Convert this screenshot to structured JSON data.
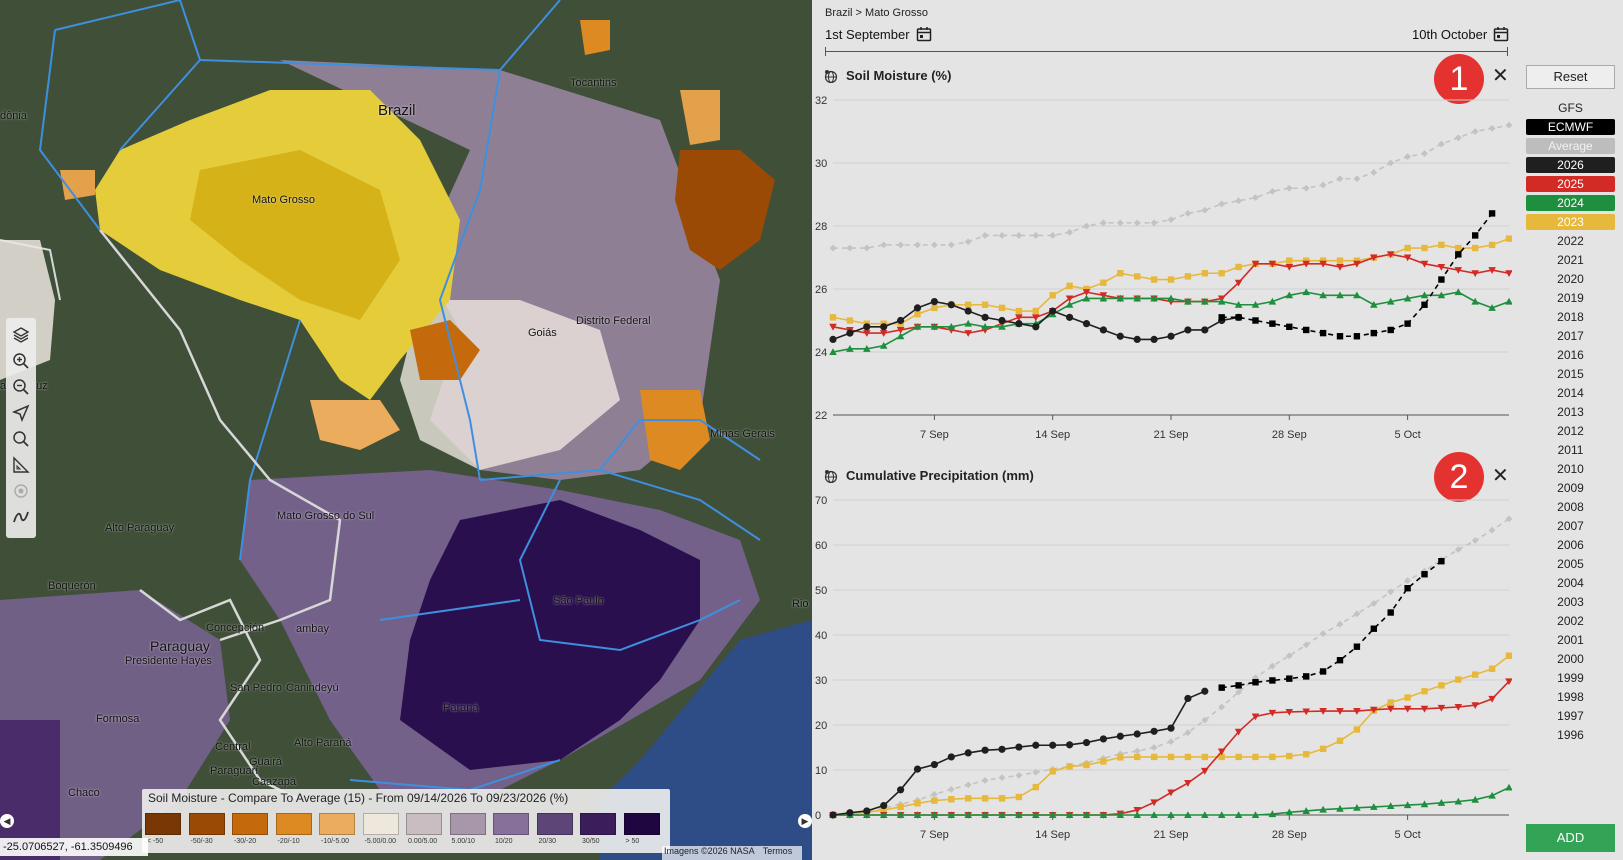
{
  "map": {
    "labels": [
      {
        "text": "Brazil",
        "size": "big"
      },
      {
        "text": "Mato Grosso",
        "size": "small"
      },
      {
        "text": "Tocantins",
        "size": "small"
      },
      {
        "text": "dônia",
        "size": "small"
      },
      {
        "text": "Goiás",
        "size": "small"
      },
      {
        "text": "Distrito Federal",
        "size": "small"
      },
      {
        "text": "anta Cruz",
        "size": "small"
      },
      {
        "text": "Minas Gerais",
        "size": "small"
      },
      {
        "text": "Mato Grosso do Sul",
        "size": "small"
      },
      {
        "text": "Alto Paraguay",
        "size": "small"
      },
      {
        "text": "Boquerón",
        "size": "small"
      },
      {
        "text": "São Paulo",
        "size": "small"
      },
      {
        "text": "Rio",
        "size": "small"
      },
      {
        "text": "Paraguay",
        "size": "mid"
      },
      {
        "text": "Concepción",
        "size": "small"
      },
      {
        "text": "Presidente Hayes",
        "size": "small"
      },
      {
        "text": "San Pedro",
        "size": "small"
      },
      {
        "text": "Canindeyú",
        "size": "small"
      },
      {
        "text": "Formosa",
        "size": "small"
      },
      {
        "text": "Paraná",
        "size": "small"
      },
      {
        "text": "Central",
        "size": "small"
      },
      {
        "text": "Alto Paraná",
        "size": "small"
      },
      {
        "text": "Guairá",
        "size": "small"
      },
      {
        "text": "Paraguarí",
        "size": "small"
      },
      {
        "text": "Caazapá",
        "size": "small"
      },
      {
        "text": "Chaco",
        "size": "small"
      },
      {
        "text": "ambay",
        "size": "small"
      }
    ],
    "toolbar": [
      "layers-icon",
      "zoom-in-icon",
      "zoom-out-icon",
      "navigate-icon",
      "search-icon",
      "measure-icon",
      "locate-icon",
      "draw-icon"
    ],
    "legend": {
      "title": "Soil Moisture - Compare To Average (15) - From 09/14/2026 To 09/23/2026 (%)",
      "swatches": [
        {
          "label": "< -50",
          "color": "#7a3706"
        },
        {
          "label": "-50/-30",
          "color": "#9b4a06"
        },
        {
          "label": "-30/-20",
          "color": "#c56a0c"
        },
        {
          "label": "-20/-10",
          "color": "#de8a22"
        },
        {
          "label": "-10/-5.00",
          "color": "#ecac5d"
        },
        {
          "label": "-5.00/0.00",
          "color": "#eee7dc"
        },
        {
          "label": "0.00/5.00",
          "color": "#c9bdc2"
        },
        {
          "label": "5.00/10",
          "color": "#a896aa"
        },
        {
          "label": "10/20",
          "color": "#87709a"
        },
        {
          "label": "20/30",
          "color": "#5d4578"
        },
        {
          "label": "30/50",
          "color": "#3c1d5c"
        },
        {
          "label": "> 50",
          "color": "#1f0640"
        }
      ]
    },
    "coords": "-25.0706527, -61.3509496",
    "attribution": [
      "Imagens ©2026 NASA",
      "Termos"
    ],
    "edge_left": "◀",
    "edge_right": "▶"
  },
  "panel": {
    "breadcrumb": "Brazil > Mato Grosso",
    "start_date": "1st September",
    "end_date": "10th October",
    "charts": [
      {
        "title": "Soil Moisture (%)",
        "badge": "1",
        "close": "✕"
      },
      {
        "title": "Cumulative Precipitation (mm)",
        "badge": "2",
        "close": "✕"
      }
    ]
  },
  "sidebar": {
    "reset": "Reset",
    "add": "ADD",
    "items": [
      {
        "label": "GFS",
        "bg": "",
        "fg": "#222"
      },
      {
        "label": "ECMWF",
        "bg": "#000000",
        "fg": "#ffffff"
      },
      {
        "label": "Average",
        "bg": "#bdbdbd",
        "fg": "#f2f2f2"
      },
      {
        "label": "2026",
        "bg": "#1f1f1f",
        "fg": "#ffffff"
      },
      {
        "label": "2025",
        "bg": "#d22b26",
        "fg": "#ffffff"
      },
      {
        "label": "2024",
        "bg": "#1e8f3e",
        "fg": "#ffffff"
      },
      {
        "label": "2023",
        "bg": "#e6b83c",
        "fg": "#ffffff"
      },
      {
        "label": "2022",
        "bg": "",
        "fg": "#222"
      },
      {
        "label": "2021",
        "bg": "",
        "fg": "#222"
      },
      {
        "label": "2020",
        "bg": "",
        "fg": "#222"
      },
      {
        "label": "2019",
        "bg": "",
        "fg": "#222"
      },
      {
        "label": "2018",
        "bg": "",
        "fg": "#222"
      },
      {
        "label": "2017",
        "bg": "",
        "fg": "#222"
      },
      {
        "label": "2016",
        "bg": "",
        "fg": "#222"
      },
      {
        "label": "2015",
        "bg": "",
        "fg": "#222"
      },
      {
        "label": "2014",
        "bg": "",
        "fg": "#222"
      },
      {
        "label": "2013",
        "bg": "",
        "fg": "#222"
      },
      {
        "label": "2012",
        "bg": "",
        "fg": "#222"
      },
      {
        "label": "2011",
        "bg": "",
        "fg": "#222"
      },
      {
        "label": "2010",
        "bg": "",
        "fg": "#222"
      },
      {
        "label": "2009",
        "bg": "",
        "fg": "#222"
      },
      {
        "label": "2008",
        "bg": "",
        "fg": "#222"
      },
      {
        "label": "2007",
        "bg": "",
        "fg": "#222"
      },
      {
        "label": "2006",
        "bg": "",
        "fg": "#222"
      },
      {
        "label": "2005",
        "bg": "",
        "fg": "#222"
      },
      {
        "label": "2004",
        "bg": "",
        "fg": "#222"
      },
      {
        "label": "2003",
        "bg": "",
        "fg": "#222"
      },
      {
        "label": "2002",
        "bg": "",
        "fg": "#222"
      },
      {
        "label": "2001",
        "bg": "",
        "fg": "#222"
      },
      {
        "label": "2000",
        "bg": "",
        "fg": "#222"
      },
      {
        "label": "1999",
        "bg": "",
        "fg": "#222"
      },
      {
        "label": "1998",
        "bg": "",
        "fg": "#222"
      },
      {
        "label": "1997",
        "bg": "",
        "fg": "#222"
      },
      {
        "label": "1996",
        "bg": "",
        "fg": "#222"
      }
    ]
  },
  "chart_data": [
    {
      "type": "line",
      "title": "Soil Moisture (%)",
      "x_start": 1,
      "xticks": [
        {
          "day": 7,
          "label": "7 Sep"
        },
        {
          "day": 14,
          "label": "14 Sep"
        },
        {
          "day": 21,
          "label": "21 Sep"
        },
        {
          "day": 28,
          "label": "28 Sep"
        },
        {
          "day": 35,
          "label": "5 Oct"
        }
      ],
      "ylim": [
        22,
        32
      ],
      "yticks": [
        22,
        24,
        26,
        28,
        30,
        32
      ],
      "grid": true,
      "series": [
        {
          "name": "Average",
          "color": "#c3c3c3",
          "marker": "diamond",
          "dash": true,
          "x_start": 1,
          "values": [
            27.3,
            27.3,
            27.3,
            27.4,
            27.4,
            27.4,
            27.4,
            27.4,
            27.5,
            27.7,
            27.7,
            27.7,
            27.7,
            27.7,
            27.8,
            28.0,
            28.1,
            28.1,
            28.1,
            28.1,
            28.2,
            28.4,
            28.5,
            28.7,
            28.8,
            28.9,
            29.1,
            29.2,
            29.2,
            29.3,
            29.5,
            29.5,
            29.7,
            30.0,
            30.2,
            30.3,
            30.6,
            30.8,
            31.0,
            31.1,
            31.2
          ]
        },
        {
          "name": "2023",
          "color": "#e6b83c",
          "marker": "square",
          "dash": false,
          "x_start": 1,
          "values": [
            25.1,
            25.0,
            24.9,
            24.9,
            24.9,
            25.2,
            25.4,
            25.5,
            25.5,
            25.5,
            25.4,
            25.3,
            25.3,
            25.8,
            26.1,
            26.0,
            26.2,
            26.5,
            26.4,
            26.3,
            26.3,
            26.4,
            26.5,
            26.5,
            26.7,
            26.8,
            26.8,
            26.9,
            26.9,
            26.9,
            26.9,
            26.9,
            27.0,
            27.1,
            27.3,
            27.3,
            27.4,
            27.3,
            27.3,
            27.4,
            27.6
          ]
        },
        {
          "name": "2025",
          "color": "#d22b26",
          "marker": "triangle-down",
          "dash": false,
          "x_start": 1,
          "values": [
            24.8,
            24.7,
            24.6,
            24.6,
            24.7,
            24.8,
            24.8,
            24.7,
            24.6,
            24.7,
            24.9,
            25.1,
            25.1,
            25.3,
            25.7,
            25.9,
            25.8,
            25.7,
            25.7,
            25.7,
            25.6,
            25.6,
            25.6,
            25.7,
            26.2,
            26.8,
            26.8,
            26.7,
            26.8,
            26.8,
            26.7,
            26.8,
            27.0,
            27.1,
            27.0,
            26.8,
            26.7,
            26.6,
            26.5,
            26.6,
            26.5
          ]
        },
        {
          "name": "2024",
          "color": "#1e8f3e",
          "marker": "triangle-up",
          "dash": false,
          "x_start": 1,
          "values": [
            24.0,
            24.1,
            24.1,
            24.2,
            24.5,
            24.8,
            24.8,
            24.8,
            24.9,
            24.8,
            24.8,
            24.9,
            24.9,
            25.2,
            25.5,
            25.7,
            25.7,
            25.7,
            25.7,
            25.7,
            25.7,
            25.6,
            25.6,
            25.6,
            25.5,
            25.5,
            25.6,
            25.8,
            25.9,
            25.8,
            25.8,
            25.8,
            25.5,
            25.6,
            25.7,
            25.8,
            25.8,
            25.9,
            25.6,
            25.4,
            25.6
          ]
        },
        {
          "name": "2026",
          "color": "#1f1f1f",
          "marker": "circle",
          "dash": false,
          "x_start": 1,
          "values": [
            24.4,
            24.6,
            24.8,
            24.8,
            25.0,
            25.4,
            25.6,
            25.5,
            25.3,
            25.1,
            25.0,
            24.9,
            24.8,
            25.3,
            25.1,
            24.9,
            24.7,
            24.5,
            24.4,
            24.4,
            24.5,
            24.7,
            24.7,
            25.0,
            25.1
          ]
        },
        {
          "name": "ECMWF",
          "color": "#000000",
          "marker": "square",
          "dash": true,
          "x_start": 24,
          "values": [
            25.1,
            25.1,
            25.0,
            24.9,
            24.8,
            24.7,
            24.6,
            24.5,
            24.5,
            24.6,
            24.7,
            24.9,
            25.5,
            26.3,
            27.1,
            27.7,
            28.4
          ]
        }
      ]
    },
    {
      "type": "line",
      "title": "Cumulative Precipitation (mm)",
      "x_start": 1,
      "xticks": [
        {
          "day": 7,
          "label": "7 Sep"
        },
        {
          "day": 14,
          "label": "14 Sep"
        },
        {
          "day": 21,
          "label": "21 Sep"
        },
        {
          "day": 28,
          "label": "28 Sep"
        },
        {
          "day": 35,
          "label": "5 Oct"
        }
      ],
      "ylim": [
        0,
        70
      ],
      "yticks": [
        0,
        10,
        20,
        30,
        40,
        50,
        60,
        70
      ],
      "grid": true,
      "series": [
        {
          "name": "Average",
          "color": "#c3c3c3",
          "marker": "diamond",
          "dash": true,
          "x_start": 1,
          "values": [
            0.0,
            0.4,
            0.9,
            1.5,
            2.4,
            3.3,
            4.6,
            5.7,
            6.7,
            7.7,
            8.3,
            8.8,
            9.5,
            10.2,
            10.8,
            11.6,
            12.6,
            13.6,
            14.2,
            15.0,
            16.3,
            18.3,
            21.1,
            24.0,
            27.3,
            30.5,
            33.1,
            35.4,
            37.8,
            40.3,
            42.4,
            44.7,
            47.0,
            49.6,
            52.1,
            54.2,
            56.7,
            59.0,
            61.0,
            63.3,
            65.8
          ]
        },
        {
          "name": "2023",
          "color": "#e6b83c",
          "marker": "square",
          "dash": false,
          "x_start": 1,
          "values": [
            0.0,
            0.3,
            0.6,
            1.1,
            1.8,
            2.6,
            3.2,
            3.5,
            3.7,
            3.7,
            3.7,
            4.0,
            6.2,
            9.7,
            10.8,
            11.1,
            11.9,
            12.8,
            12.9,
            12.9,
            12.9,
            12.9,
            12.9,
            12.9,
            12.9,
            12.9,
            12.9,
            13.1,
            13.5,
            14.7,
            16.5,
            19.0,
            23.2,
            25.0,
            26.1,
            27.5,
            28.8,
            30.1,
            31.2,
            32.5,
            35.4
          ]
        },
        {
          "name": "2025",
          "color": "#d22b26",
          "marker": "triangle-down",
          "dash": false,
          "x_start": 1,
          "values": [
            0.0,
            0.0,
            0.0,
            0.0,
            0.0,
            0.0,
            0.0,
            0.0,
            0.0,
            0.0,
            0.0,
            0.0,
            0.0,
            0.0,
            0.0,
            0.0,
            0.0,
            0.3,
            1.1,
            2.8,
            5.0,
            7.1,
            9.8,
            14.1,
            18.5,
            21.9,
            22.7,
            22.9,
            23.0,
            23.1,
            23.1,
            23.1,
            23.4,
            23.6,
            23.6,
            23.6,
            23.8,
            24.0,
            24.4,
            25.8,
            29.7
          ]
        },
        {
          "name": "2024",
          "color": "#1e8f3e",
          "marker": "triangle-up",
          "dash": false,
          "x_start": 1,
          "values": [
            0.0,
            0.0,
            0.0,
            0.0,
            0.0,
            0.0,
            0.0,
            0.0,
            0.0,
            0.0,
            0.0,
            0.0,
            0.0,
            0.0,
            0.0,
            0.0,
            0.0,
            0.0,
            0.0,
            0.0,
            0.0,
            0.0,
            0.0,
            0.0,
            0.0,
            0.0,
            0.2,
            0.6,
            0.9,
            1.2,
            1.4,
            1.6,
            1.8,
            2.0,
            2.2,
            2.4,
            2.7,
            3.0,
            3.4,
            4.3,
            6.1
          ]
        },
        {
          "name": "2026",
          "color": "#1f1f1f",
          "marker": "circle",
          "dash": false,
          "x_start": 1,
          "values": [
            0.0,
            0.5,
            0.9,
            2.1,
            5.6,
            10.2,
            11.2,
            12.9,
            13.8,
            14.4,
            14.6,
            15.1,
            15.5,
            15.5,
            15.6,
            16.1,
            16.9,
            17.5,
            18.0,
            18.6,
            19.3,
            25.9,
            27.5
          ]
        },
        {
          "name": "ECMWF",
          "color": "#000000",
          "marker": "square",
          "dash": true,
          "x_start": 24,
          "values": [
            28.3,
            28.8,
            29.5,
            29.9,
            30.3,
            30.8,
            31.9,
            34.4,
            37.4,
            41.4,
            45.0,
            50.4,
            53.5,
            56.4
          ]
        }
      ]
    }
  ]
}
